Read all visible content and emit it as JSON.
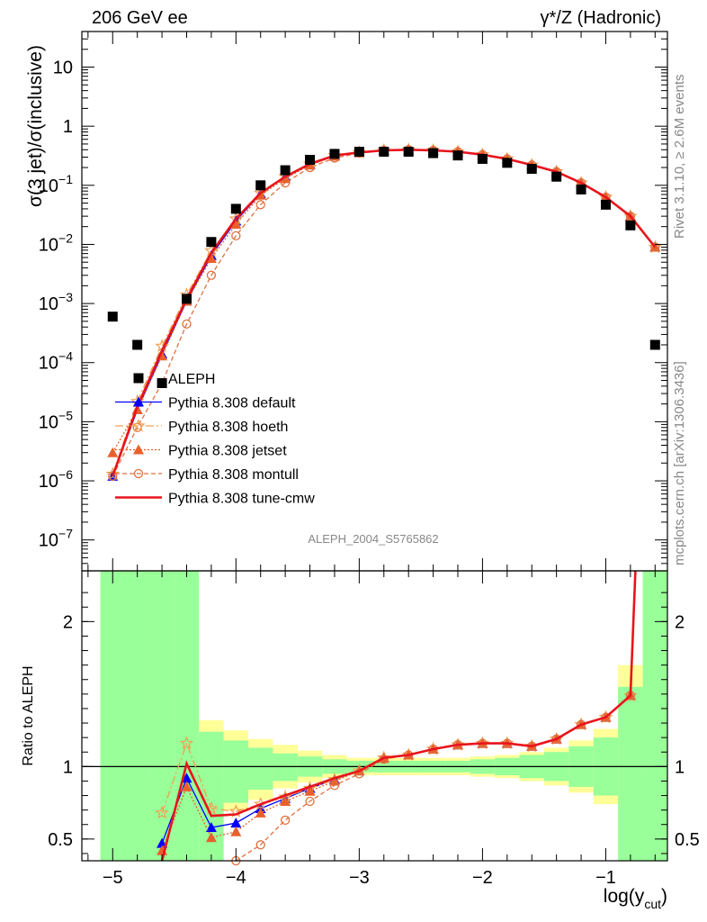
{
  "header": {
    "left": "206 GeV ee",
    "right": "γ*/Z (Hadronic)"
  },
  "side_text": {
    "rivet": "Rivet 3.1.10, ≥ 2.6M events",
    "mcplots": "mcplots.cern.ch [arXiv:1306.3436]"
  },
  "analysis_id": "ALEPH_2004_S5765862",
  "chart_data": [
    {
      "type": "scatter",
      "panel": "main",
      "ylabel": "σ(3 jet)/σ(inclusive)",
      "yscale": "log",
      "ylim": [
        3e-08,
        40
      ],
      "xlim": [
        -5.25,
        -0.5
      ],
      "y_tick_labels": [
        "10^-7",
        "10^-6",
        "10^-5",
        "10^-4",
        "10^-3",
        "10^-2",
        "10^-1",
        "1",
        "10"
      ],
      "legend_position": "lower-left",
      "data_series": {
        "name": "ALEPH",
        "color": "#000000",
        "x": [
          -5.0,
          -4.8,
          -4.6,
          -4.4,
          -4.2,
          -4.0,
          -3.8,
          -3.6,
          -3.4,
          -3.2,
          -3.0,
          -2.8,
          -2.6,
          -2.4,
          -2.2,
          -2.0,
          -1.8,
          -1.6,
          -1.4,
          -1.2,
          -1.0,
          -0.8,
          -0.6
        ],
        "y": [
          0.0006,
          0.0002,
          4.5e-05,
          0.0012,
          0.011,
          0.04,
          0.1,
          0.18,
          0.27,
          0.34,
          0.37,
          0.37,
          0.37,
          0.35,
          0.32,
          0.28,
          0.24,
          0.19,
          0.14,
          0.085,
          0.047,
          0.021,
          0.0002
        ]
      },
      "series": [
        {
          "name": "Pythia 8.308 default",
          "color": "#0000ff",
          "marker": "triangle",
          "x": [
            -5.0,
            -4.8,
            -4.6,
            -4.4,
            -4.2,
            -4.0,
            -3.8,
            -3.6,
            -3.4,
            -3.2,
            -3.0,
            -2.8,
            -2.6,
            -2.4,
            -2.2,
            -2.0,
            -1.8,
            -1.6,
            -1.4,
            -1.2,
            -1.0,
            -0.8,
            -0.6
          ],
          "y": [
            1.2e-06,
            1.6e-05,
            0.00014,
            0.0011,
            0.0065,
            0.025,
            0.072,
            0.14,
            0.23,
            0.32,
            0.36,
            0.39,
            0.4,
            0.39,
            0.37,
            0.33,
            0.28,
            0.22,
            0.17,
            0.11,
            0.063,
            0.03,
            0.009
          ]
        },
        {
          "name": "Pythia 8.308 hoeth",
          "color": "#f0a050",
          "marker": "star",
          "x": [
            -5.0,
            -4.8,
            -4.6,
            -4.4,
            -4.2,
            -4.0,
            -3.8,
            -3.6,
            -3.4,
            -3.2,
            -3.0,
            -2.8,
            -2.6,
            -2.4,
            -2.2,
            -2.0,
            -1.8,
            -1.6,
            -1.4,
            -1.2,
            -1.0,
            -0.8,
            -0.6
          ],
          "y": [
            1.3e-06,
            2.2e-05,
            0.00019,
            0.0014,
            0.0078,
            0.027,
            0.074,
            0.14,
            0.23,
            0.32,
            0.36,
            0.39,
            0.4,
            0.39,
            0.37,
            0.33,
            0.28,
            0.22,
            0.17,
            0.11,
            0.063,
            0.03,
            0.009
          ]
        },
        {
          "name": "Pythia 8.308 jetset",
          "color": "#e8602c",
          "marker": "triangle",
          "x": [
            -5.0,
            -4.8,
            -4.6,
            -4.4,
            -4.2,
            -4.0,
            -3.8,
            -3.6,
            -3.4,
            -3.2,
            -3.0,
            -2.8,
            -2.6,
            -2.4,
            -2.2,
            -2.0,
            -1.8,
            -1.6,
            -1.4,
            -1.2,
            -1.0,
            -0.8,
            -0.6
          ],
          "y": [
            3e-06,
            1.6e-05,
            0.00013,
            0.0011,
            0.0058,
            0.022,
            0.068,
            0.13,
            0.22,
            0.31,
            0.36,
            0.39,
            0.4,
            0.39,
            0.37,
            0.33,
            0.28,
            0.22,
            0.17,
            0.11,
            0.063,
            0.03,
            0.009
          ]
        },
        {
          "name": "Pythia 8.308 montull",
          "color": "#e07040",
          "marker": "circle-open",
          "x": [
            -5.0,
            -4.8,
            -4.6,
            -4.4,
            -4.2,
            -4.0,
            -3.8,
            -3.6,
            -3.4,
            -3.2,
            -3.0,
            -2.8,
            -2.6,
            -2.4,
            -2.2,
            -2.0,
            -1.8,
            -1.6,
            -1.4,
            -1.2,
            -1.0,
            -0.8,
            -0.6
          ],
          "y": [
            1.2e-06,
            8e-06,
            4.5e-05,
            0.00045,
            0.003,
            0.014,
            0.047,
            0.11,
            0.2,
            0.29,
            0.35,
            0.39,
            0.4,
            0.39,
            0.37,
            0.33,
            0.28,
            0.22,
            0.17,
            0.11,
            0.063,
            0.03,
            0.009
          ]
        },
        {
          "name": "Pythia 8.308 tune-cmw",
          "color": "#e8141c",
          "marker": "none",
          "x": [
            -5.0,
            -4.8,
            -4.6,
            -4.4,
            -4.2,
            -4.0,
            -3.8,
            -3.6,
            -3.4,
            -3.2,
            -3.0,
            -2.8,
            -2.6,
            -2.4,
            -2.2,
            -2.0,
            -1.8,
            -1.6,
            -1.4,
            -1.2,
            -1.0,
            -0.8,
            -0.6
          ],
          "y": [
            1.2e-06,
            1.8e-05,
            0.00016,
            0.0012,
            0.0072,
            0.027,
            0.074,
            0.14,
            0.23,
            0.32,
            0.36,
            0.39,
            0.4,
            0.39,
            0.37,
            0.33,
            0.28,
            0.22,
            0.17,
            0.11,
            0.063,
            0.03,
            0.009
          ]
        }
      ]
    },
    {
      "type": "line",
      "panel": "ratio",
      "ylabel": "Ratio to ALEPH",
      "xlabel": "log(y_cut)",
      "ylim": [
        0.35,
        2.35
      ],
      "xlim": [
        -5.25,
        -0.5
      ],
      "x_ticks": [
        -5,
        -4,
        -3,
        -2,
        -1
      ],
      "x_tick_labels": [
        "−5",
        "−4",
        "−3",
        "−2",
        "−1"
      ],
      "y_ticks": [
        0.5,
        1,
        2
      ],
      "y_tick_labels": [
        "0.5",
        "1",
        "2"
      ],
      "band_x_edges": [
        -5.1,
        -4.9,
        -4.7,
        -4.5,
        -4.3,
        -4.1,
        -3.9,
        -3.7,
        -3.5,
        -3.3,
        -3.1,
        -2.9,
        -2.7,
        -2.5,
        -2.3,
        -2.1,
        -1.9,
        -1.7,
        -1.5,
        -1.3,
        -1.1,
        -0.9,
        -0.7,
        -0.5
      ],
      "green_band": [
        [
          0.35,
          2.35
        ],
        [
          0.35,
          2.35
        ],
        [
          0.35,
          2.35
        ],
        [
          0.35,
          2.35
        ],
        [
          0.35,
          1.24
        ],
        [
          0.75,
          1.18
        ],
        [
          0.84,
          1.13
        ],
        [
          0.9,
          1.09
        ],
        [
          0.93,
          1.07
        ],
        [
          0.95,
          1.05
        ],
        [
          0.96,
          1.04
        ],
        [
          0.96,
          1.04
        ],
        [
          0.96,
          1.04
        ],
        [
          0.96,
          1.04
        ],
        [
          0.96,
          1.04
        ],
        [
          0.95,
          1.05
        ],
        [
          0.94,
          1.06
        ],
        [
          0.92,
          1.08
        ],
        [
          0.9,
          1.1
        ],
        [
          0.86,
          1.14
        ],
        [
          0.8,
          1.2
        ],
        [
          0.35,
          1.55
        ],
        [
          0.35,
          2.35
        ]
      ],
      "yellow_band": [
        [
          0.35,
          2.35
        ],
        [
          0.35,
          2.35
        ],
        [
          0.35,
          2.35
        ],
        [
          0.35,
          2.35
        ],
        [
          0.35,
          1.32
        ],
        [
          0.7,
          1.25
        ],
        [
          0.77,
          1.19
        ],
        [
          0.85,
          1.15
        ],
        [
          0.89,
          1.11
        ],
        [
          0.92,
          1.08
        ],
        [
          0.94,
          1.06
        ],
        [
          0.94,
          1.06
        ],
        [
          0.94,
          1.06
        ],
        [
          0.94,
          1.06
        ],
        [
          0.94,
          1.06
        ],
        [
          0.93,
          1.07
        ],
        [
          0.92,
          1.08
        ],
        [
          0.9,
          1.1
        ],
        [
          0.87,
          1.13
        ],
        [
          0.82,
          1.18
        ],
        [
          0.74,
          1.26
        ],
        [
          0.35,
          1.7
        ],
        [
          0.35,
          2.35
        ]
      ],
      "series": [
        {
          "name": "Pythia 8.308 default",
          "color": "#0000ff",
          "x": [
            -4.6,
            -4.4,
            -4.2,
            -4.0,
            -3.8,
            -3.6,
            -3.4,
            -3.2,
            -3.0,
            -2.8,
            -2.6,
            -2.4,
            -2.2,
            -2.0,
            -1.8,
            -1.6,
            -1.4,
            -1.2,
            -1.0,
            -0.8
          ],
          "y": [
            0.47,
            0.92,
            0.58,
            0.61,
            0.71,
            0.78,
            0.85,
            0.91,
            0.97,
            1.06,
            1.08,
            1.12,
            1.15,
            1.16,
            1.16,
            1.14,
            1.19,
            1.29,
            1.34,
            1.49
          ]
        },
        {
          "name": "Pythia 8.308 hoeth",
          "color": "#f0a050",
          "x": [
            -4.6,
            -4.4,
            -4.2,
            -4.0,
            -3.8,
            -3.6,
            -3.4,
            -3.2,
            -3.0,
            -2.8,
            -2.6,
            -2.4,
            -2.2,
            -2.0,
            -1.8,
            -1.6,
            -1.4,
            -1.2,
            -1.0,
            -0.8
          ],
          "y": [
            0.68,
            1.16,
            0.71,
            0.69,
            0.74,
            0.79,
            0.85,
            0.91,
            0.97,
            1.06,
            1.08,
            1.12,
            1.15,
            1.16,
            1.16,
            1.14,
            1.19,
            1.29,
            1.34,
            1.49
          ]
        },
        {
          "name": "Pythia 8.308 jetset",
          "color": "#e8602c",
          "x": [
            -4.6,
            -4.4,
            -4.2,
            -4.0,
            -3.8,
            -3.6,
            -3.4,
            -3.2,
            -3.0,
            -2.8,
            -2.6,
            -2.4,
            -2.2,
            -2.0,
            -1.8,
            -1.6,
            -1.4,
            -1.2,
            -1.0,
            -0.8
          ],
          "y": [
            0.42,
            0.86,
            0.51,
            0.55,
            0.68,
            0.76,
            0.83,
            0.9,
            0.97,
            1.06,
            1.08,
            1.12,
            1.15,
            1.16,
            1.16,
            1.14,
            1.19,
            1.29,
            1.34,
            1.49
          ]
        },
        {
          "name": "Pythia 8.308 montull",
          "color": "#e07040",
          "x": [
            -4.0,
            -3.8,
            -3.6,
            -3.4,
            -3.2,
            -3.0,
            -2.8,
            -2.6,
            -2.4,
            -2.2,
            -2.0,
            -1.8,
            -1.6,
            -1.4,
            -1.2,
            -1.0,
            -0.8
          ],
          "y": [
            0.32,
            0.46,
            0.63,
            0.76,
            0.87,
            0.95,
            1.05,
            1.08,
            1.12,
            1.15,
            1.16,
            1.16,
            1.14,
            1.19,
            1.29,
            1.34,
            1.49
          ]
        },
        {
          "name": "Pythia 8.308 tune-cmw",
          "color": "#e8141c",
          "x": [
            -4.6,
            -4.4,
            -4.2,
            -4.0,
            -3.8,
            -3.6,
            -3.4,
            -3.2,
            -3.0,
            -2.8,
            -2.6,
            -2.4,
            -2.2,
            -2.0,
            -1.8,
            -1.6,
            -1.4,
            -1.2,
            -1.0,
            -0.8,
            -0.76
          ],
          "y": [
            0.33,
            1.02,
            0.66,
            0.67,
            0.74,
            0.8,
            0.86,
            0.92,
            0.97,
            1.06,
            1.08,
            1.12,
            1.15,
            1.16,
            1.16,
            1.14,
            1.19,
            1.29,
            1.34,
            1.49,
            2.35
          ]
        }
      ]
    }
  ]
}
